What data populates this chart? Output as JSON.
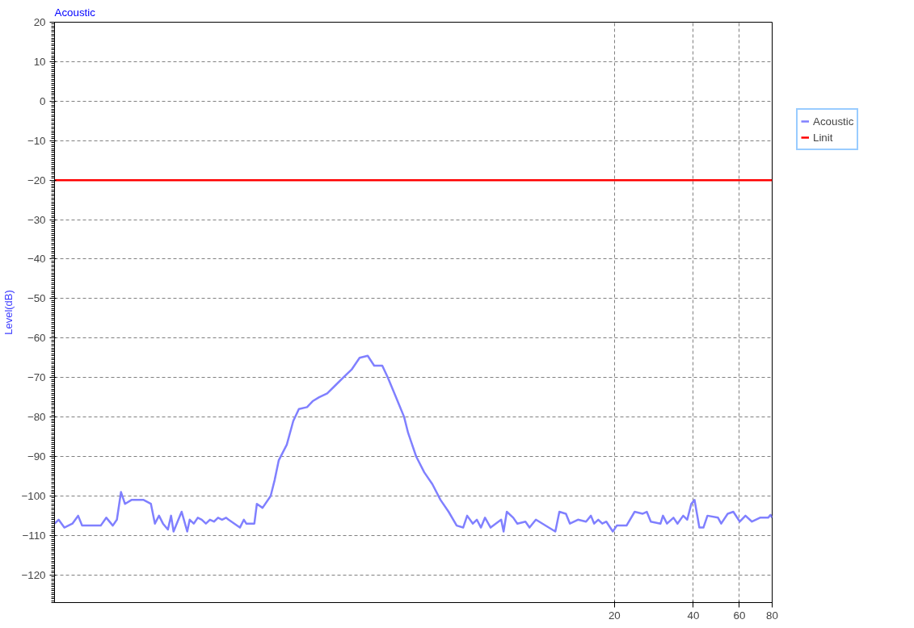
{
  "chart_data": {
    "type": "line",
    "title": "Acoustic",
    "ylabel": "Level(dB)",
    "log": "x",
    "xlim": [
      0.146,
      80
    ],
    "xticks": [
      20,
      40,
      60,
      80
    ],
    "ylim": [
      -127,
      20
    ],
    "yticks": [
      -120,
      -110,
      -100,
      -90,
      -80,
      -70,
      -60,
      -50,
      -40,
      -30,
      -20,
      -10,
      0,
      10,
      20
    ],
    "grid": true,
    "legend": "top right",
    "line_style": "solid",
    "marker": "none",
    "series": [
      {
        "name": "Acoustic",
        "color": "#8080ff",
        "x": [
          0.1461,
          0.1513,
          0.1591,
          0.1708,
          0.1796,
          0.186,
          0.2191,
          0.2301,
          0.2436,
          0.2525,
          0.2618,
          0.2711,
          0.287,
          0.3194,
          0.3405,
          0.3527,
          0.3656,
          0.3786,
          0.3953,
          0.4065,
          0.4155,
          0.4334,
          0.4461,
          0.4685,
          0.4789,
          0.496,
          0.5141,
          0.5324,
          0.552,
          0.5719,
          0.5926,
          0.6143,
          0.6362,
          0.6595,
          0.6735,
          0.7443,
          0.7708,
          0.7872,
          0.8451,
          0.8639,
          0.9082,
          0.9751,
          1.0098,
          1.0468,
          1.1238,
          1.1897,
          1.2495,
          1.3427,
          1.4103,
          1.4929,
          1.6029,
          1.7208,
          1.8474,
          1.9853,
          2.1313,
          2.2882,
          2.4222,
          2.6006,
          2.731,
          2.9352,
          3.1511,
          3.2632,
          3.5032,
          3.7612,
          4.0379,
          4.3397,
          4.6588,
          5.0016,
          5.2949,
          5.4836,
          5.7646,
          5.97,
          6.189,
          6.415,
          6.738,
          7.394,
          7.551,
          7.77,
          8.221,
          8.523,
          9.15,
          9.485,
          10.031,
          11.9,
          12.33,
          13.06,
          13.53,
          14.52,
          15.59,
          16.27,
          16.74,
          17.35,
          17.98,
          18.63,
          19.72,
          20.43,
          22.25,
          23.89,
          25.65,
          26.58,
          27.54,
          29.99,
          30.64,
          31.75,
          33.61,
          34.82,
          36.6,
          37.93,
          39.3,
          40.43,
          42.19,
          43.72,
          45.3,
          49.69,
          51.12,
          54.11,
          56.87,
          60.2,
          63.27,
          66.97,
          71.9,
          77.21,
          78.87,
          80
        ],
        "values": [
          -107,
          -106,
          -108,
          -107,
          -105,
          -107.5,
          -107.5,
          -105.5,
          -107.5,
          -106,
          -99,
          -102,
          -101,
          -101,
          -102,
          -107,
          -105,
          -107,
          -108.5,
          -105,
          -109,
          -106,
          -104,
          -109,
          -106,
          -107,
          -105.5,
          -106,
          -107,
          -106,
          -106.5,
          -105.5,
          -106,
          -105.5,
          -106,
          -108,
          -106,
          -107,
          -107,
          -102,
          -103,
          -100,
          -96,
          -91,
          -87,
          -81,
          -78,
          -77.5,
          -76,
          -75,
          -74,
          -72,
          -70,
          -68,
          -65,
          -64.5,
          -67,
          -67,
          -70,
          -75,
          -80,
          -84,
          -90,
          -94,
          -97,
          -101,
          -104,
          -107.5,
          -108,
          -105,
          -107,
          -106,
          -108,
          -105.5,
          -108,
          -106,
          -109,
          -104,
          -105.5,
          -107,
          -106.5,
          -108,
          -106,
          -109,
          -104,
          -104.5,
          -107,
          -106,
          -106.5,
          -105,
          -107,
          -106,
          -107,
          -106.5,
          -109,
          -107.5,
          -107.5,
          -104,
          -104.5,
          -104,
          -106.5,
          -107,
          -105,
          -107,
          -105.5,
          -107,
          -105,
          -106,
          -102,
          -101,
          -108,
          -108,
          -105,
          -105.5,
          -107,
          -104.5,
          -104,
          -106.5,
          -105,
          -106.5,
          -105.5,
          -105.5,
          -104.8,
          -105.5
        ]
      },
      {
        "name": "Linit",
        "color": "#ff0000",
        "x": [
          0.146,
          80
        ],
        "values": [
          -20,
          -20
        ]
      }
    ]
  }
}
